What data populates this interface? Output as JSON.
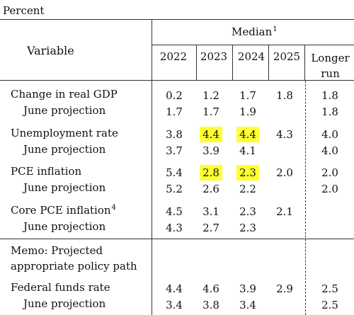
{
  "unit_label": "Percent",
  "header": {
    "variable": "Variable",
    "median": "Median",
    "median_note": "1",
    "years": [
      "2022",
      "2023",
      "2024",
      "2025"
    ],
    "longer_run": [
      "Longer",
      "run"
    ]
  },
  "highlight_color": "#ffff33",
  "memo": [
    "Memo: Projected",
    "appropriate policy path"
  ],
  "rows": [
    {
      "label": "Change in real GDP",
      "note": "",
      "sub": false,
      "values": [
        "0.2",
        "1.2",
        "1.7",
        "1.8",
        "1.8"
      ],
      "highlight": [
        false,
        false,
        false,
        false,
        false
      ]
    },
    {
      "label": "June projection",
      "note": "",
      "sub": true,
      "values": [
        "1.7",
        "1.7",
        "1.9",
        "",
        "1.8"
      ],
      "highlight": [
        false,
        false,
        false,
        false,
        false
      ]
    },
    {
      "label": "Unemployment rate",
      "note": "",
      "sub": false,
      "values": [
        "3.8",
        "4.4",
        "4.4",
        "4.3",
        "4.0"
      ],
      "highlight": [
        false,
        true,
        true,
        false,
        false
      ]
    },
    {
      "label": "June projection",
      "note": "",
      "sub": true,
      "values": [
        "3.7",
        "3.9",
        "4.1",
        "",
        "4.0"
      ],
      "highlight": [
        false,
        false,
        false,
        false,
        false
      ]
    },
    {
      "label": "PCE inflation",
      "note": "",
      "sub": false,
      "values": [
        "5.4",
        "2.8",
        "2.3",
        "2.0",
        "2.0"
      ],
      "highlight": [
        false,
        true,
        true,
        false,
        false
      ]
    },
    {
      "label": "June projection",
      "note": "",
      "sub": true,
      "values": [
        "5.2",
        "2.6",
        "2.2",
        "",
        "2.0"
      ],
      "highlight": [
        false,
        false,
        false,
        false,
        false
      ]
    },
    {
      "label": "Core PCE inflation",
      "note": "4",
      "sub": false,
      "values": [
        "4.5",
        "3.1",
        "2.3",
        "2.1",
        ""
      ],
      "highlight": [
        false,
        false,
        false,
        false,
        false
      ]
    },
    {
      "label": "June projection",
      "note": "",
      "sub": true,
      "values": [
        "4.3",
        "2.7",
        "2.3",
        "",
        ""
      ],
      "highlight": [
        false,
        false,
        false,
        false,
        false
      ]
    },
    {
      "label": "Federal funds rate",
      "note": "",
      "sub": false,
      "values": [
        "4.4",
        "4.6",
        "3.9",
        "2.9",
        "2.5"
      ],
      "highlight": [
        false,
        false,
        false,
        false,
        false
      ]
    },
    {
      "label": "June projection",
      "note": "",
      "sub": true,
      "values": [
        "3.4",
        "3.8",
        "3.4",
        "",
        "2.5"
      ],
      "highlight": [
        false,
        false,
        false,
        false,
        false
      ]
    }
  ]
}
